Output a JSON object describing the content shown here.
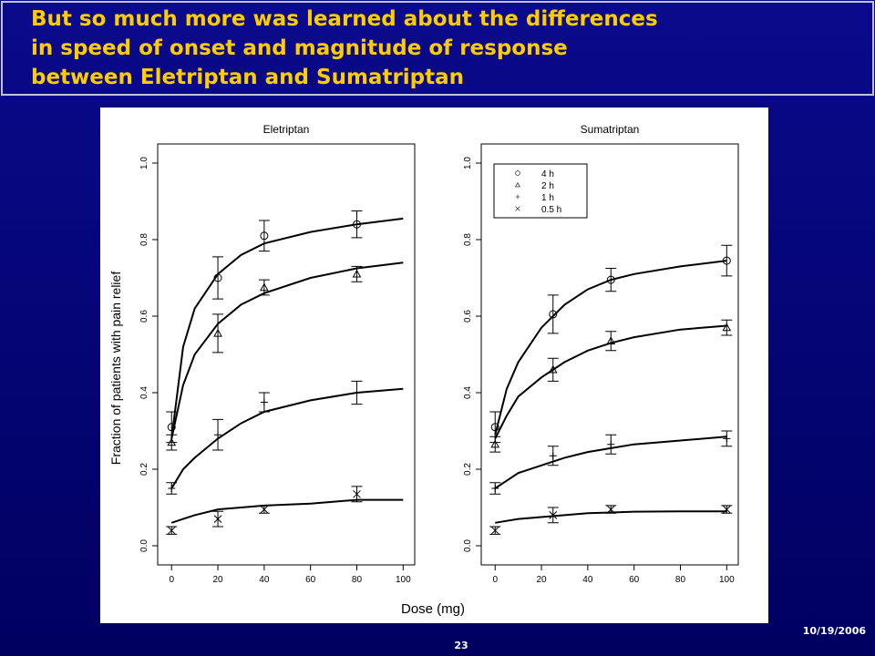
{
  "slide": {
    "title": [
      "But so much more was learned about the differences",
      "in speed of onset and magnitude of response",
      "between Eletriptan and Sumatriptan"
    ],
    "page": "23",
    "date": "10/19/2006"
  },
  "figure": {
    "xlabel": "Dose (mg)",
    "ylabel": "Fraction of patients with pain relief"
  },
  "chart_data": [
    {
      "type": "scatter",
      "title": "Eletriptan",
      "x": [
        0,
        20,
        40,
        80
      ],
      "xlim": [
        -6,
        105
      ],
      "ylim": [
        -0.05,
        1.05
      ],
      "xticks": [
        0,
        20,
        40,
        60,
        80,
        100
      ],
      "yticks": [
        {
          "value": 0,
          "label": "0.0"
        },
        0.2,
        0.4,
        0.6,
        0.8,
        {
          "value": 1,
          "label": "1.0"
        }
      ],
      "fit_x": [
        0,
        5,
        10,
        20,
        30,
        40,
        60,
        80,
        100
      ],
      "color": "#000000",
      "series": [
        {
          "marker": "circle",
          "values": [
            0.31,
            0.7,
            0.81,
            0.84
          ],
          "errors": [
            0.04,
            0.055,
            0.04,
            0.035
          ],
          "fit": [
            0.28,
            0.52,
            0.62,
            0.71,
            0.76,
            0.79,
            0.82,
            0.84,
            0.855
          ]
        },
        {
          "marker": "triangle",
          "values": [
            0.27,
            0.555,
            0.675,
            0.71
          ],
          "errors": [
            0.02,
            0.05,
            0.02,
            0.02
          ],
          "fit": [
            0.28,
            0.42,
            0.5,
            0.58,
            0.63,
            0.66,
            0.7,
            0.725,
            0.74
          ]
        },
        {
          "marker": "plus",
          "values": [
            0.15,
            0.29,
            0.375,
            0.4
          ],
          "errors": [
            0.015,
            0.04,
            0.025,
            0.03
          ],
          "fit": [
            0.15,
            0.2,
            0.23,
            0.28,
            0.32,
            0.35,
            0.38,
            0.4,
            0.41
          ]
        },
        {
          "marker": "cross",
          "values": [
            0.04,
            0.07,
            0.095,
            0.135
          ],
          "errors": [
            0.01,
            0.02,
            0.01,
            0.02
          ],
          "fit": [
            0.06,
            0.07,
            0.08,
            0.095,
            0.1,
            0.105,
            0.11,
            0.12,
            0.12
          ]
        }
      ]
    },
    {
      "type": "scatter",
      "title": "Sumatriptan",
      "x": [
        0,
        25,
        50,
        100
      ],
      "xlim": [
        -6,
        105
      ],
      "ylim": [
        -0.05,
        1.05
      ],
      "xticks": [
        0,
        20,
        40,
        60,
        80,
        100
      ],
      "yticks": [
        {
          "value": 0,
          "label": "0.0"
        },
        0.2,
        0.4,
        0.6,
        0.8,
        {
          "value": 1,
          "label": "1.0"
        }
      ],
      "fit_x": [
        0,
        5,
        10,
        20,
        30,
        40,
        50,
        60,
        80,
        100
      ],
      "color": "#000000",
      "legend": "top-left",
      "series": [
        {
          "name": "4 h",
          "marker": "circle",
          "values": [
            0.31,
            0.605,
            0.695,
            0.745
          ],
          "errors": [
            0.04,
            0.05,
            0.03,
            0.04
          ],
          "fit": [
            0.29,
            0.41,
            0.48,
            0.57,
            0.63,
            0.67,
            0.695,
            0.71,
            0.73,
            0.745
          ]
        },
        {
          "name": "2 h",
          "marker": "triangle",
          "values": [
            0.265,
            0.46,
            0.535,
            0.57
          ],
          "errors": [
            0.02,
            0.03,
            0.025,
            0.02
          ],
          "fit": [
            0.28,
            0.34,
            0.39,
            0.44,
            0.48,
            0.51,
            0.53,
            0.545,
            0.565,
            0.575
          ]
        },
        {
          "name": "1 h",
          "marker": "plus",
          "values": [
            0.15,
            0.235,
            0.265,
            0.28
          ],
          "errors": [
            0.015,
            0.025,
            0.025,
            0.02
          ],
          "fit": [
            0.15,
            0.17,
            0.19,
            0.21,
            0.23,
            0.245,
            0.255,
            0.265,
            0.275,
            0.285
          ]
        },
        {
          "name": "0.5 h",
          "marker": "cross",
          "values": [
            0.04,
            0.08,
            0.095,
            0.095
          ],
          "errors": [
            0.01,
            0.02,
            0.01,
            0.01
          ],
          "fit": [
            0.06,
            0.065,
            0.07,
            0.075,
            0.08,
            0.085,
            0.087,
            0.089,
            0.09,
            0.09
          ]
        }
      ]
    }
  ]
}
